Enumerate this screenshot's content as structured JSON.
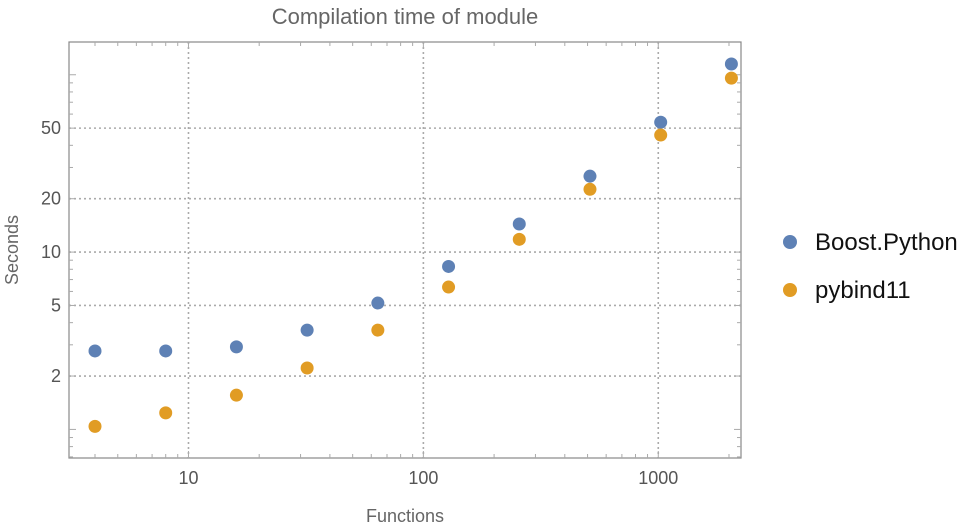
{
  "chart_data": {
    "type": "scatter",
    "title": "Compilation time of module",
    "xlabel": "Functions",
    "ylabel": "Seconds",
    "xscale": "log",
    "yscale": "log",
    "xlim": [
      3.1,
      2250
    ],
    "ylim": [
      0.69,
      153
    ],
    "grid": true,
    "legend_position": "right",
    "x_ticks": [
      10,
      100,
      1000
    ],
    "y_ticks": [
      2,
      5,
      10,
      20,
      50
    ],
    "x": [
      4,
      8,
      16,
      32,
      64,
      128,
      256,
      512,
      1024,
      2048
    ],
    "series": [
      {
        "name": "Boost.Python",
        "color": "#5E81B5",
        "values": [
          2.77,
          2.77,
          2.92,
          3.63,
          5.16,
          8.3,
          14.4,
          26.8,
          54,
          115
        ]
      },
      {
        "name": "pybind11",
        "color": "#E19C24",
        "values": [
          1.04,
          1.24,
          1.56,
          2.22,
          3.63,
          6.35,
          11.8,
          22.6,
          45.7,
          95.7
        ]
      }
    ]
  }
}
